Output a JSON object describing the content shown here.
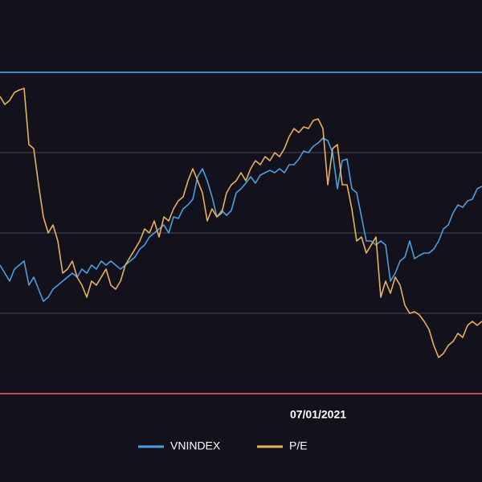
{
  "chart_data": {
    "type": "line",
    "categories": [
      null,
      null,
      null,
      null,
      null,
      null,
      null,
      null,
      null,
      null,
      null,
      null,
      null,
      null,
      null,
      null,
      null,
      null,
      null,
      null,
      null,
      null,
      null,
      null,
      null,
      null,
      null,
      null,
      null,
      null,
      null,
      null,
      null,
      null,
      null,
      null,
      null,
      null,
      null,
      null,
      null,
      null,
      null,
      null,
      null,
      null,
      null,
      null,
      null,
      null,
      null,
      null,
      null,
      null,
      null,
      null,
      null,
      null,
      null,
      null,
      null,
      null,
      null,
      null,
      null,
      null,
      "07/01/2021",
      null,
      null,
      null,
      null,
      null,
      null,
      null,
      null,
      null,
      null,
      null,
      null,
      null,
      null,
      null,
      null,
      null,
      null,
      null,
      null,
      null,
      null,
      null,
      null,
      null,
      null,
      null,
      null,
      null,
      null,
      null,
      null,
      null,
      null
    ],
    "series": [
      {
        "name": "VNINDEX",
        "color": "#4a9fe0",
        "values": [
          1.6,
          1.5,
          1.4,
          1.55,
          1.6,
          1.65,
          1.35,
          1.45,
          1.3,
          1.15,
          1.2,
          1.3,
          1.35,
          1.4,
          1.45,
          1.5,
          1.45,
          1.55,
          1.5,
          1.6,
          1.55,
          1.65,
          1.6,
          1.65,
          1.6,
          1.55,
          1.6,
          1.65,
          1.7,
          1.8,
          1.85,
          1.95,
          2.0,
          2.05,
          2.1,
          2.0,
          2.2,
          2.18,
          2.3,
          2.35,
          2.42,
          2.7,
          2.8,
          2.65,
          2.45,
          2.2,
          2.28,
          2.22,
          2.28,
          2.5,
          2.55,
          2.62,
          2.7,
          2.62,
          2.72,
          2.75,
          2.78,
          2.75,
          2.8,
          2.75,
          2.85,
          2.85,
          2.92,
          3.02,
          3.0,
          3.08,
          3.12,
          3.18,
          3.15,
          3.0,
          2.55,
          2.9,
          2.92,
          2.55,
          2.5,
          2.2,
          1.9,
          1.9,
          1.85,
          1.9,
          1.85,
          1.4,
          1.5,
          1.65,
          1.7,
          1.9,
          1.68,
          1.72,
          1.75,
          1.75,
          1.8,
          1.9,
          2.05,
          2.1,
          2.25,
          2.35,
          2.32,
          2.4,
          2.42,
          2.55,
          2.58
        ]
      },
      {
        "name": "P/E",
        "color": "#e8b25a",
        "values": [
          3.7,
          3.6,
          3.65,
          3.75,
          3.78,
          3.8,
          3.1,
          3.05,
          2.6,
          2.2,
          2.0,
          2.1,
          1.9,
          1.5,
          1.55,
          1.65,
          1.45,
          1.35,
          1.2,
          1.4,
          1.35,
          1.45,
          1.55,
          1.35,
          1.3,
          1.4,
          1.6,
          1.7,
          1.8,
          1.9,
          2.05,
          2.0,
          2.15,
          1.95,
          2.2,
          2.15,
          2.3,
          2.4,
          2.45,
          2.65,
          2.8,
          2.65,
          2.5,
          2.15,
          2.3,
          2.2,
          2.25,
          2.5,
          2.6,
          2.65,
          2.75,
          2.65,
          2.8,
          2.9,
          2.85,
          2.95,
          2.9,
          3.0,
          2.95,
          3.05,
          3.2,
          3.3,
          3.25,
          3.32,
          3.3,
          3.4,
          3.42,
          3.3,
          2.6,
          3.05,
          3.1,
          2.6,
          2.6,
          2.3,
          1.9,
          1.95,
          1.75,
          1.85,
          1.95,
          1.2,
          1.4,
          1.25,
          1.45,
          1.35,
          1.1,
          1.0,
          1.02,
          0.98,
          0.9,
          0.8,
          0.6,
          0.45,
          0.5,
          0.6,
          0.65,
          0.75,
          0.7,
          0.85,
          0.9,
          0.85,
          0.9
        ]
      }
    ],
    "ylim": [
      0,
      4.9
    ],
    "yticks": [
      1,
      2,
      3
    ],
    "grid": true,
    "grid_color": "#4a4756",
    "reference_lines": [
      {
        "value": 4,
        "color": "#3a87d6"
      },
      {
        "value": 0,
        "color": "#c0504d"
      }
    ],
    "legend": "bottom"
  }
}
